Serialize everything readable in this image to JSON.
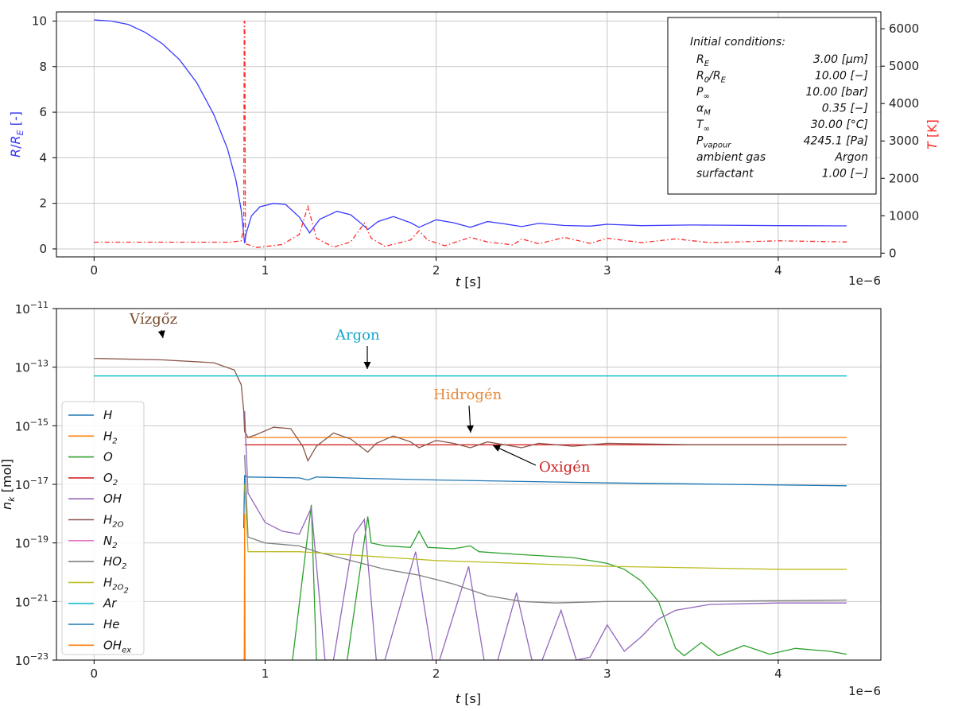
{
  "chart_data": [
    {
      "type": "line",
      "xlabel": "t [s]",
      "x_multiplier": "1e−6",
      "xlim": [
        -0.22,
        4.6
      ],
      "xticks": [
        0,
        1,
        2,
        3,
        4
      ],
      "ylabel_left": "R/R_E [-]",
      "ylim_left": [
        -0.35,
        10.4
      ],
      "yticks_left": [
        0,
        2,
        4,
        6,
        8,
        10
      ],
      "ylabel_right": "T [K]",
      "ylim_right": [
        -100,
        6450
      ],
      "yticks_right": [
        0,
        1000,
        2000,
        3000,
        4000,
        5000,
        6000
      ],
      "grid": true,
      "series": [
        {
          "color": "#3a3aff",
          "axis": "left",
          "points": [
            [
              0,
              10.05
            ],
            [
              0.1,
              10.0
            ],
            [
              0.2,
              9.85
            ],
            [
              0.3,
              9.5
            ],
            [
              0.4,
              9.0
            ],
            [
              0.5,
              8.3
            ],
            [
              0.6,
              7.3
            ],
            [
              0.7,
              5.9
            ],
            [
              0.78,
              4.4
            ],
            [
              0.83,
              3.0
            ],
            [
              0.86,
              1.7
            ],
            [
              0.87,
              1.0
            ],
            [
              0.88,
              0.25
            ],
            [
              0.89,
              0.7
            ],
            [
              0.92,
              1.45
            ],
            [
              0.97,
              1.85
            ],
            [
              1.05,
              2.0
            ],
            [
              1.12,
              1.95
            ],
            [
              1.2,
              1.4
            ],
            [
              1.26,
              0.7
            ],
            [
              1.32,
              1.3
            ],
            [
              1.42,
              1.65
            ],
            [
              1.5,
              1.5
            ],
            [
              1.58,
              1.0
            ],
            [
              1.6,
              0.85
            ],
            [
              1.66,
              1.2
            ],
            [
              1.75,
              1.42
            ],
            [
              1.85,
              1.15
            ],
            [
              1.9,
              0.95
            ],
            [
              2.0,
              1.28
            ],
            [
              2.1,
              1.15
            ],
            [
              2.2,
              0.95
            ],
            [
              2.3,
              1.2
            ],
            [
              2.4,
              1.1
            ],
            [
              2.5,
              0.98
            ],
            [
              2.6,
              1.12
            ],
            [
              2.75,
              1.03
            ],
            [
              2.9,
              1.0
            ],
            [
              3.0,
              1.08
            ],
            [
              3.2,
              1.02
            ],
            [
              3.5,
              1.05
            ],
            [
              4.0,
              1.02
            ],
            [
              4.4,
              1.01
            ]
          ]
        },
        {
          "color": "#ff2a2a",
          "axis": "right",
          "style": "dash-dot",
          "points": [
            [
              0,
              293
            ],
            [
              0.8,
              293
            ],
            [
              0.86,
              330
            ],
            [
              0.875,
              700
            ],
            [
              0.878,
              6200
            ],
            [
              0.881,
              6200
            ],
            [
              0.885,
              250
            ],
            [
              0.95,
              150
            ],
            [
              1.1,
              230
            ],
            [
              1.2,
              500
            ],
            [
              1.25,
              1250
            ],
            [
              1.3,
              400
            ],
            [
              1.4,
              160
            ],
            [
              1.5,
              300
            ],
            [
              1.58,
              800
            ],
            [
              1.62,
              400
            ],
            [
              1.7,
              180
            ],
            [
              1.85,
              350
            ],
            [
              1.9,
              600
            ],
            [
              1.95,
              350
            ],
            [
              2.05,
              200
            ],
            [
              2.2,
              420
            ],
            [
              2.3,
              300
            ],
            [
              2.45,
              220
            ],
            [
              2.5,
              380
            ],
            [
              2.6,
              250
            ],
            [
              2.75,
              420
            ],
            [
              2.9,
              260
            ],
            [
              3.0,
              400
            ],
            [
              3.2,
              280
            ],
            [
              3.4,
              380
            ],
            [
              3.6,
              280
            ],
            [
              4.0,
              330
            ],
            [
              4.4,
              300
            ]
          ]
        }
      ],
      "info_box": {
        "title": "Initial conditions:",
        "rows": [
          [
            "R_E",
            "3.00  [μm]"
          ],
          [
            "R_0/R_E",
            "10.00  [−]"
          ],
          [
            "P_∞",
            "10.00  [bar]"
          ],
          [
            "α_M",
            "0.35  [−]"
          ],
          [
            "T_∞",
            "30.00  [°C]"
          ],
          [
            "P_vapour",
            "4245.1  [Pa]"
          ],
          [
            "ambient gas",
            "Argon"
          ],
          [
            "surfactant",
            "1.00  [−]"
          ]
        ]
      }
    },
    {
      "type": "line",
      "xlabel": "t [s]",
      "x_multiplier": "1e−6",
      "xlim": [
        -0.22,
        4.6
      ],
      "xticks": [
        0,
        1,
        2,
        3,
        4
      ],
      "ylabel": "n_k [mol]",
      "yscale": "log",
      "ylim_exp": [
        -23,
        -11
      ],
      "yticks_exp": [
        -23,
        -21,
        -19,
        -17,
        -15,
        -13,
        -11
      ],
      "grid": true,
      "legend_position": "lower-left",
      "series": [
        {
          "name": "H",
          "color": "#1f77b4",
          "points": [
            [
              0.875,
              -18.5
            ],
            [
              0.88,
              -16.7
            ],
            [
              0.9,
              -16.75
            ],
            [
              1.2,
              -16.78
            ],
            [
              1.25,
              -16.85
            ],
            [
              1.3,
              -16.75
            ],
            [
              1.6,
              -16.8
            ],
            [
              2.0,
              -16.85
            ],
            [
              3.0,
              -16.95
            ],
            [
              4.4,
              -17.05
            ]
          ]
        },
        {
          "name": "H_2",
          "color": "#ff7f0e",
          "points": [
            [
              0.88,
              -15.4
            ],
            [
              4.4,
              -15.4
            ]
          ]
        },
        {
          "name": "O",
          "color": "#2ca02c",
          "points": [
            [
              1.16,
              -23
            ],
            [
              1.27,
              -17.7
            ],
            [
              1.3,
              -23
            ],
            [
              1.4,
              -23
            ],
            [
              1.48,
              -23
            ],
            [
              1.6,
              -18.1
            ],
            [
              1.62,
              -19.0
            ],
            [
              1.7,
              -19.1
            ],
            [
              1.85,
              -19.15
            ],
            [
              1.9,
              -18.6
            ],
            [
              1.95,
              -19.15
            ],
            [
              2.1,
              -19.2
            ],
            [
              2.2,
              -19.1
            ],
            [
              2.25,
              -19.3
            ],
            [
              2.5,
              -19.4
            ],
            [
              2.8,
              -19.5
            ],
            [
              3.0,
              -19.7
            ],
            [
              3.1,
              -19.9
            ],
            [
              3.2,
              -20.3
            ],
            [
              3.3,
              -21.0
            ],
            [
              3.35,
              -21.8
            ],
            [
              3.4,
              -22.6
            ],
            [
              3.45,
              -22.85
            ],
            [
              3.55,
              -22.4
            ],
            [
              3.65,
              -22.85
            ],
            [
              3.8,
              -22.5
            ],
            [
              3.95,
              -22.8
            ],
            [
              4.1,
              -22.6
            ],
            [
              4.3,
              -22.7
            ],
            [
              4.4,
              -22.8
            ]
          ]
        },
        {
          "name": "O_2",
          "color": "#d62728",
          "points": [
            [
              0.88,
              -15.65
            ],
            [
              4.4,
              -15.65
            ]
          ]
        },
        {
          "name": "OH",
          "color": "#9467bd",
          "points": [
            [
              0.88,
              -14.5
            ],
            [
              0.9,
              -17.3
            ],
            [
              1.0,
              -18.3
            ],
            [
              1.1,
              -18.6
            ],
            [
              1.2,
              -18.7
            ],
            [
              1.27,
              -17.8
            ],
            [
              1.35,
              -23
            ],
            [
              1.4,
              -23
            ],
            [
              1.52,
              -18.7
            ],
            [
              1.58,
              -18.2
            ],
            [
              1.65,
              -23
            ],
            [
              1.7,
              -23
            ],
            [
              1.88,
              -19.3
            ],
            [
              1.98,
              -23
            ],
            [
              2.02,
              -23
            ],
            [
              2.19,
              -19.8
            ],
            [
              2.28,
              -23
            ],
            [
              2.36,
              -23
            ],
            [
              2.47,
              -20.7
            ],
            [
              2.56,
              -23
            ],
            [
              2.62,
              -23
            ],
            [
              2.73,
              -21.3
            ],
            [
              2.82,
              -23
            ],
            [
              2.9,
              -22.9
            ],
            [
              3.0,
              -21.8
            ],
            [
              3.1,
              -22.7
            ],
            [
              3.2,
              -22.2
            ],
            [
              3.3,
              -21.6
            ],
            [
              3.4,
              -21.3
            ],
            [
              3.6,
              -21.1
            ],
            [
              4.0,
              -21.05
            ],
            [
              4.4,
              -21.05
            ]
          ]
        },
        {
          "name": "H_2O",
          "color": "#8c564b",
          "points": [
            [
              0,
              -12.7
            ],
            [
              0.4,
              -12.75
            ],
            [
              0.7,
              -12.85
            ],
            [
              0.82,
              -13.1
            ],
            [
              0.86,
              -13.6
            ],
            [
              0.875,
              -14.5
            ],
            [
              0.88,
              -15.2
            ],
            [
              0.9,
              -15.4
            ],
            [
              0.95,
              -15.3
            ],
            [
              1.05,
              -15.05
            ],
            [
              1.15,
              -15.1
            ],
            [
              1.22,
              -15.7
            ],
            [
              1.25,
              -16.2
            ],
            [
              1.3,
              -15.7
            ],
            [
              1.4,
              -15.25
            ],
            [
              1.5,
              -15.45
            ],
            [
              1.6,
              -15.9
            ],
            [
              1.65,
              -15.6
            ],
            [
              1.75,
              -15.35
            ],
            [
              1.85,
              -15.55
            ],
            [
              1.9,
              -15.75
            ],
            [
              2.0,
              -15.5
            ],
            [
              2.1,
              -15.6
            ],
            [
              2.2,
              -15.75
            ],
            [
              2.3,
              -15.55
            ],
            [
              2.4,
              -15.65
            ],
            [
              2.5,
              -15.75
            ],
            [
              2.6,
              -15.6
            ],
            [
              2.8,
              -15.7
            ],
            [
              3.0,
              -15.6
            ],
            [
              3.5,
              -15.65
            ],
            [
              4.4,
              -15.65
            ]
          ]
        },
        {
          "name": "N_2",
          "color": "#e377c2",
          "points": []
        },
        {
          "name": "HO_2",
          "color": "#7f7f7f",
          "points": [
            [
              0.88,
              -16.0
            ],
            [
              0.9,
              -18.8
            ],
            [
              1.0,
              -19.0
            ],
            [
              1.2,
              -19.1
            ],
            [
              1.3,
              -19.3
            ],
            [
              1.5,
              -19.6
            ],
            [
              1.7,
              -19.9
            ],
            [
              1.9,
              -20.1
            ],
            [
              2.1,
              -20.4
            ],
            [
              2.3,
              -20.8
            ],
            [
              2.5,
              -21.0
            ],
            [
              2.7,
              -21.05
            ],
            [
              3.0,
              -21.0
            ],
            [
              3.5,
              -21.0
            ],
            [
              4.4,
              -20.95
            ]
          ]
        },
        {
          "name": "H_2O_2",
          "color": "#bcbd22",
          "points": [
            [
              0.88,
              -17.0
            ],
            [
              0.9,
              -19.3
            ],
            [
              1.2,
              -19.3
            ],
            [
              1.6,
              -19.45
            ],
            [
              2.0,
              -19.6
            ],
            [
              2.5,
              -19.7
            ],
            [
              3.0,
              -19.8
            ],
            [
              4.0,
              -19.9
            ],
            [
              4.4,
              -19.9
            ]
          ]
        },
        {
          "name": "Ar",
          "color": "#17becf",
          "points": [
            [
              0,
              -13.3
            ],
            [
              4.4,
              -13.3
            ]
          ]
        },
        {
          "name": "He",
          "color": "#1f77b4",
          "points": []
        },
        {
          "name": "OH_ex",
          "color": "#ff7f0e",
          "points": [
            [
              0.878,
              -23
            ],
            [
              0.88,
              -18.0
            ],
            [
              0.883,
              -23
            ]
          ]
        }
      ],
      "annotations": [
        {
          "text": "Vízgőz",
          "color": "#7b4a2a",
          "at": [
            0.4,
            -12.75
          ]
        },
        {
          "text": "Argon",
          "color": "#17a6cf",
          "at": [
            1.62,
            -13.3
          ]
        },
        {
          "text": "Hidrogén",
          "color": "#e8893a",
          "at": [
            2.3,
            -15.4
          ]
        },
        {
          "text": "Oxigén",
          "color": "#cc2222",
          "at": [
            2.35,
            -15.65
          ]
        }
      ]
    }
  ]
}
